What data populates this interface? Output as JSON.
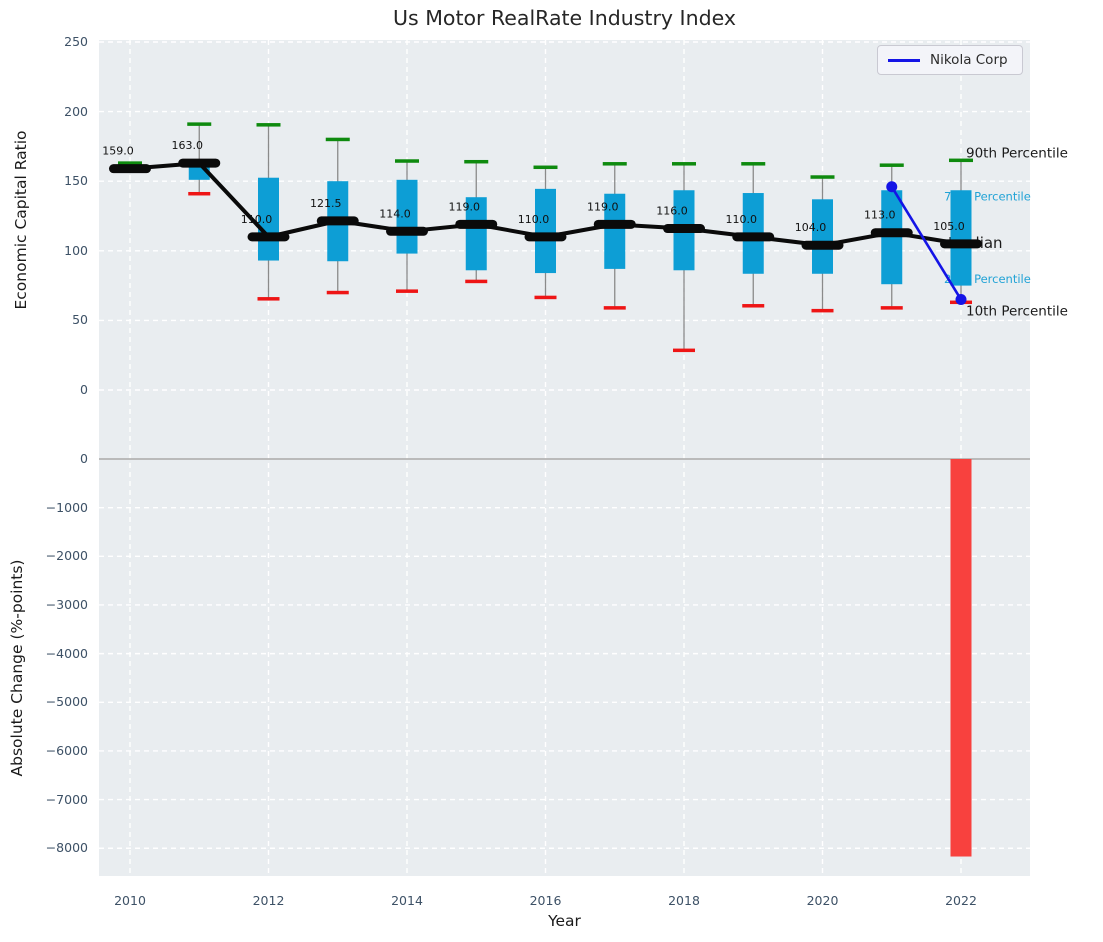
{
  "title": "Us Motor RealRate Industry Index",
  "legend": {
    "label": "Nikola Corp"
  },
  "colors": {
    "panel_bg": "#e9edf0",
    "grid": "#ffffff",
    "zero_line": "#b3b3b3",
    "box": "#0d9ed5",
    "cap_high": "#0e8a0e",
    "cap_low": "#ee1515",
    "whisker": "#8a8a8a",
    "median_marker": "#0a0a0a",
    "trend_line": "#0a0a0a",
    "nikola_line": "#1414e6",
    "bar_negative": "#f8413e",
    "tick_text": "#3d5166",
    "black_text": "#1a1a1a",
    "cyan_text": "#22a3d6"
  },
  "chart_data": {
    "type": "box+line+bar",
    "title": "Us Motor RealRate Industry Index",
    "xlabel": "Year",
    "xticks": [
      {
        "v": 2010,
        "label": "2010"
      },
      {
        "v": 2012,
        "label": "2012"
      },
      {
        "v": 2014,
        "label": "2014"
      },
      {
        "v": 2016,
        "label": "2016"
      },
      {
        "v": 2018,
        "label": "2018"
      },
      {
        "v": 2020,
        "label": "2020"
      },
      {
        "v": 2022,
        "label": "2022"
      }
    ],
    "top": {
      "ylabel": "Economic Capital Ratio",
      "ylim": [
        0,
        250
      ],
      "yticks": [
        {
          "v": 250,
          "label": "250"
        },
        {
          "v": 200,
          "label": "200"
        },
        {
          "v": 150,
          "label": "150"
        },
        {
          "v": 100,
          "label": "100"
        },
        {
          "v": 50,
          "label": "50"
        },
        {
          "v": 0,
          "label": "0"
        }
      ],
      "boxes": [
        {
          "year": 2010,
          "median": 159,
          "label": "159.0",
          "q1": null,
          "q3": null,
          "p10": null,
          "p90": 163
        },
        {
          "year": 2011,
          "median": 163,
          "label": "163.0",
          "q1": 151,
          "q3": 163.5,
          "p10": 141,
          "p90": 191
        },
        {
          "year": 2012,
          "median": 110,
          "label": "110.0",
          "q1": 93,
          "q3": 152.5,
          "p10": 65.5,
          "p90": 190.5
        },
        {
          "year": 2013,
          "median": 121.5,
          "label": "121.5",
          "q1": 92.5,
          "q3": 150,
          "p10": 70,
          "p90": 180
        },
        {
          "year": 2014,
          "median": 114,
          "label": "114.0",
          "q1": 98,
          "q3": 151,
          "p10": 71,
          "p90": 164.5
        },
        {
          "year": 2015,
          "median": 119,
          "label": "119.0",
          "q1": 86,
          "q3": 138.5,
          "p10": 78,
          "p90": 164
        },
        {
          "year": 2016,
          "median": 110,
          "label": "110.0",
          "q1": 84,
          "q3": 144.5,
          "p10": 66.5,
          "p90": 160
        },
        {
          "year": 2017,
          "median": 119,
          "label": "119.0",
          "q1": 87,
          "q3": 141,
          "p10": 59,
          "p90": 162.5
        },
        {
          "year": 2018,
          "median": 116,
          "label": "116.0",
          "q1": 86,
          "q3": 143.5,
          "p10": 28.5,
          "p90": 162.5
        },
        {
          "year": 2019,
          "median": 110,
          "label": "110.0",
          "q1": 83.5,
          "q3": 141.5,
          "p10": 60.5,
          "p90": 162.5
        },
        {
          "year": 2020,
          "median": 104,
          "label": "104.0",
          "q1": 83.5,
          "q3": 137,
          "p10": 57,
          "p90": 153
        },
        {
          "year": 2021,
          "median": 113,
          "label": "113.0",
          "q1": 76,
          "q3": 143.5,
          "p10": 59,
          "p90": 161.5
        },
        {
          "year": 2022,
          "median": 105,
          "label": "105.0",
          "q1": 75,
          "q3": 143.5,
          "p10": 63,
          "p90": 165
        }
      ],
      "nikola": {
        "name": "Nikola Corp",
        "points": [
          {
            "year": 2021,
            "value": 146
          },
          {
            "year": 2022,
            "value": 65
          }
        ]
      },
      "annotations": [
        {
          "id": "annotation-90th-percentile",
          "label": "90th Percentile",
          "value": 170.5,
          "x": 867,
          "color": "#1a1a1a",
          "size": 13.5
        },
        {
          "id": "annotation-75th-percentile",
          "label": "75th Percentile",
          "value": 139,
          "x": 845,
          "color": "#22a3d6",
          "size": 11.5
        },
        {
          "id": "annotation-median",
          "label": "Median",
          "value": 106,
          "x": 849,
          "color": "#1a1a1a",
          "size": 15
        },
        {
          "id": "annotation-25th-percentile",
          "label": "25th Percentile",
          "value": 80,
          "x": 845,
          "color": "#22a3d6",
          "size": 11.5
        },
        {
          "id": "annotation-10th-percentile",
          "label": "10th Percentile",
          "value": 57,
          "x": 867,
          "color": "#1a1a1a",
          "size": 13.5
        }
      ]
    },
    "bottom": {
      "ylabel": "Absolute Change (%-points)",
      "ylim": [
        -8600,
        600
      ],
      "yticks": [
        {
          "v": 0,
          "label": "0"
        },
        {
          "v": -1000,
          "label": "−1000"
        },
        {
          "v": -2000,
          "label": "−2000"
        },
        {
          "v": -3000,
          "label": "−3000"
        },
        {
          "v": -4000,
          "label": "−4000"
        },
        {
          "v": -5000,
          "label": "−5000"
        },
        {
          "v": -6000,
          "label": "−6000"
        },
        {
          "v": -7000,
          "label": "−7000"
        },
        {
          "v": -8000,
          "label": "−8000"
        }
      ],
      "bars": [
        {
          "year": 2022,
          "value": -8170
        }
      ]
    }
  }
}
